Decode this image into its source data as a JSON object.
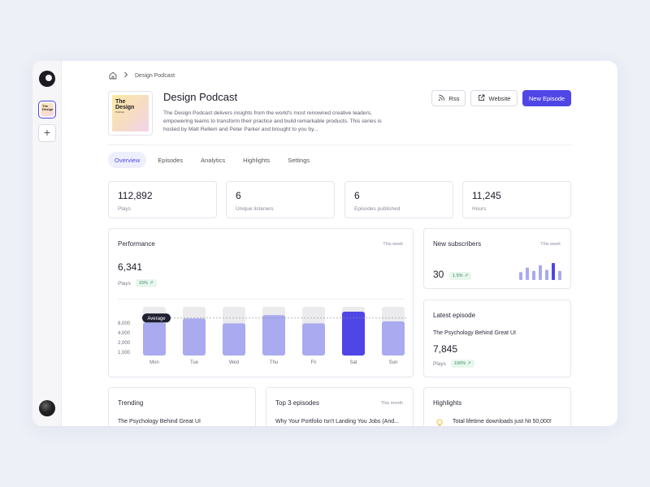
{
  "breadcrumb": {
    "current": "Design Podcast"
  },
  "cover": {
    "line1": "The",
    "line2": "Design",
    "small": "Podcast"
  },
  "podcast": {
    "title": "Design Podcast",
    "description": "The Design Podcast delivers insights from the world's most renowned creative leaders, empowering teams to transform their practice and build remarkable products. This series is hosted by Matt Rellem and Peter Parker and brought to you by..."
  },
  "actions": {
    "rss": "Rss",
    "website": "Website",
    "new_episode": "New Episode"
  },
  "tabs": [
    "Overview",
    "Episodes",
    "Analytics",
    "Highlights",
    "Settings"
  ],
  "stats": [
    {
      "value": "112,892",
      "label": "Plays"
    },
    {
      "value": "6",
      "label": "Unique listeners"
    },
    {
      "value": "6",
      "label": "Episodes published"
    },
    {
      "value": "11,245",
      "label": "Hours"
    }
  ],
  "performance": {
    "title": "Performance",
    "range": "This week",
    "value": "6,341",
    "label": "Plays",
    "change": "15%"
  },
  "chart_data": {
    "type": "bar",
    "categories": [
      "Mon",
      "Tue",
      "Wed",
      "Thu",
      "Fri",
      "Sat",
      "Sun"
    ],
    "values": [
      6800,
      7600,
      6600,
      8300,
      6600,
      9000,
      7000
    ],
    "max": 10000,
    "y_ticks": [
      "8,000",
      "4,000",
      "2,000",
      "1,000"
    ],
    "average_label": "Average",
    "average": 7700,
    "highlight_index": 5,
    "colors": {
      "bar": "#a9aaf0",
      "highlight": "#4f46e5",
      "track": "#ebebee"
    }
  },
  "subscribers": {
    "title": "New subscribers",
    "range": "This week",
    "value": "30",
    "change": "1.5%",
    "bars": [
      0.35,
      0.55,
      0.4,
      0.65,
      0.45,
      0.75,
      0.4
    ],
    "highlight_index": 5
  },
  "latest": {
    "title": "Latest episode",
    "episode": "The Psychology Behind Great UI",
    "value": "7,845",
    "label": "Plays",
    "change": "100%"
  },
  "trending": {
    "title": "Trending",
    "item": "The Psychology Behind Great UI"
  },
  "top3": {
    "title": "Top 3 episodes",
    "range": "This month",
    "item": "Why Your Portfolio Isn't Landing You Jobs (And..."
  },
  "highlights": {
    "title": "Highlights",
    "item": "Total lifetime downloads just hit 50,000!"
  },
  "colors": {
    "accent": "#4f46e5",
    "positive_bg": "#e7f6ee",
    "positive_text": "#3f8a5f"
  }
}
